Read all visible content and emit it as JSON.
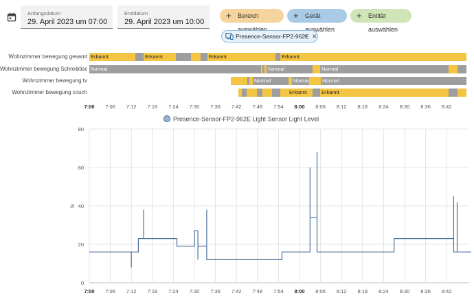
{
  "date_range": {
    "start": {
      "label": "Anfangsdatum",
      "value": "29. April 2023 um 07:00"
    },
    "end": {
      "label": "Enddatum",
      "value": "29. April 2023 um 10:00"
    },
    "calendar_icon": "calendar-icon"
  },
  "target_picker": {
    "area_button": "Bereich auswählen",
    "device_button": "Gerät auswählen",
    "entity_button": "Entität auswählen",
    "colors": {
      "area": "#f6d49e",
      "device": "#a9cbe6",
      "entity": "#cfe5b7"
    }
  },
  "selected_target": {
    "label": "Presence-Sensor-FP2-962E",
    "icon": "device-icon",
    "expand_icon": "expand-icon",
    "remove_icon": "close-icon"
  },
  "timeline": {
    "colors": {
      "on": "#f4c542",
      "off": "#9e9e9e"
    },
    "rows": [
      {
        "label": "Wohnzimmer bewegung gesamt",
        "segments": [
          {
            "state": "on",
            "from": 0,
            "to": 67,
            "text": "Erkannt"
          },
          {
            "state": "off",
            "from": 67,
            "to": 79,
            "text": ""
          },
          {
            "state": "on",
            "from": 79,
            "to": 126,
            "text": "Erkannt"
          },
          {
            "state": "off",
            "from": 126,
            "to": 148,
            "text": ""
          },
          {
            "state": "on",
            "from": 148,
            "to": 162,
            "text": ""
          },
          {
            "state": "off",
            "from": 162,
            "to": 172,
            "text": ""
          },
          {
            "state": "on",
            "from": 172,
            "to": 271,
            "text": "Erkannt"
          },
          {
            "state": "off",
            "from": 271,
            "to": 278,
            "text": ""
          },
          {
            "state": "on",
            "from": 278,
            "to": 549,
            "text": "Erkannt"
          }
        ]
      },
      {
        "label": "Wohnzimmer bewegung Schreibtisch",
        "segments": [
          {
            "state": "off",
            "from": 0,
            "to": 250,
            "text": "Normal"
          },
          {
            "state": "on",
            "from": 250,
            "to": 252,
            "text": ""
          },
          {
            "state": "off",
            "from": 252,
            "to": 255,
            "text": ""
          },
          {
            "state": "on",
            "from": 255,
            "to": 258,
            "text": ""
          },
          {
            "state": "off",
            "from": 258,
            "to": 325,
            "text": "Normal"
          },
          {
            "state": "on",
            "from": 325,
            "to": 336,
            "text": ""
          },
          {
            "state": "off",
            "from": 336,
            "to": 523,
            "text": "Normal"
          },
          {
            "state": "on",
            "from": 523,
            "to": 536,
            "text": ""
          },
          {
            "state": "off",
            "from": 536,
            "to": 549,
            "text": ""
          }
        ]
      },
      {
        "label": "Wohnzimmer bewegung tv",
        "segments": [
          {
            "state": "on",
            "from": 206,
            "to": 230,
            "text": ""
          },
          {
            "state": "off",
            "from": 230,
            "to": 233,
            "text": ""
          },
          {
            "state": "on",
            "from": 233,
            "to": 238,
            "text": ""
          },
          {
            "state": "off",
            "from": 238,
            "to": 290,
            "text": "Normal"
          },
          {
            "state": "on",
            "from": 290,
            "to": 295,
            "text": ""
          },
          {
            "state": "off",
            "from": 295,
            "to": 320,
            "text": "Normal"
          },
          {
            "state": "on",
            "from": 320,
            "to": 337,
            "text": ""
          },
          {
            "state": "off",
            "from": 337,
            "to": 549,
            "text": "Normal"
          }
        ]
      },
      {
        "label": "Wohnzimmer bewegung couch",
        "segments": [
          {
            "state": "on",
            "from": 217,
            "to": 222,
            "text": ""
          },
          {
            "state": "off",
            "from": 222,
            "to": 229,
            "text": ""
          },
          {
            "state": "on",
            "from": 229,
            "to": 244,
            "text": ""
          },
          {
            "state": "off",
            "from": 244,
            "to": 252,
            "text": ""
          },
          {
            "state": "on",
            "from": 252,
            "to": 266,
            "text": ""
          },
          {
            "state": "off",
            "from": 266,
            "to": 278,
            "text": ""
          },
          {
            "state": "on",
            "from": 278,
            "to": 289,
            "text": ""
          },
          {
            "state": "on",
            "from": 289,
            "to": 325,
            "text": "Erkannt"
          },
          {
            "state": "off",
            "from": 325,
            "to": 336,
            "text": ""
          },
          {
            "state": "on",
            "from": 336,
            "to": 523,
            "text": "Erkannt"
          },
          {
            "state": "off",
            "from": 523,
            "to": 536,
            "text": ""
          },
          {
            "state": "on",
            "from": 536,
            "to": 549,
            "text": ""
          }
        ]
      }
    ]
  },
  "time_ticks": [
    {
      "label": "7:00",
      "bold": true
    },
    {
      "label": "7:06"
    },
    {
      "label": "7:12"
    },
    {
      "label": "7:18"
    },
    {
      "label": "7:24"
    },
    {
      "label": "7:30"
    },
    {
      "label": "7:36"
    },
    {
      "label": "7:42"
    },
    {
      "label": "7:48"
    },
    {
      "label": "7:54"
    },
    {
      "label": "8:00",
      "bold": true
    },
    {
      "label": "8:06"
    },
    {
      "label": "8:12"
    },
    {
      "label": "8:18"
    },
    {
      "label": "8:24"
    },
    {
      "label": "8:30"
    },
    {
      "label": "8:36"
    },
    {
      "label": "8:42"
    }
  ],
  "chart_data": {
    "type": "line",
    "series": [
      {
        "name": "Presence-Sensor-FP2-962E Light Sensor Light Level",
        "color": "#4a6f9a"
      }
    ],
    "ylabel": "lx",
    "ylim": [
      0,
      80
    ],
    "yticks": [
      0,
      20,
      40,
      60,
      80
    ],
    "x_range_minutes": [
      0,
      180
    ],
    "step_points": [
      [
        0,
        16
      ],
      [
        12,
        16
      ],
      [
        12,
        8
      ],
      [
        12,
        16
      ],
      [
        14,
        16
      ],
      [
        14,
        23
      ],
      [
        15.5,
        23
      ],
      [
        15.5,
        38
      ],
      [
        15.5,
        23
      ],
      [
        25,
        23
      ],
      [
        25,
        19
      ],
      [
        30,
        19
      ],
      [
        30,
        27
      ],
      [
        31,
        27
      ],
      [
        31,
        12
      ],
      [
        31,
        19
      ],
      [
        33.5,
        19
      ],
      [
        33.5,
        38
      ],
      [
        33.5,
        12
      ],
      [
        55,
        12
      ],
      [
        55,
        16
      ],
      [
        63,
        16
      ],
      [
        63,
        60
      ],
      [
        63,
        34
      ],
      [
        65,
        34
      ],
      [
        65,
        68
      ],
      [
        65,
        16
      ],
      [
        87,
        16
      ],
      [
        87,
        23
      ],
      [
        104,
        23
      ],
      [
        104,
        45
      ],
      [
        104,
        16
      ],
      [
        105,
        16
      ],
      [
        105,
        42
      ],
      [
        105,
        16
      ],
      [
        109,
        16
      ]
    ]
  }
}
